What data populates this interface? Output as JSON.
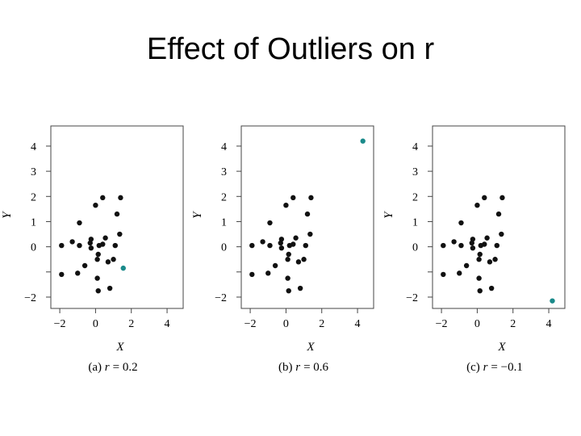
{
  "slide": {
    "title": "Effect of Outliers on r"
  },
  "colors": {
    "points": "#111111",
    "outlier": "#1a8a8a",
    "frame": "#444444"
  },
  "chart_data": [
    {
      "type": "scatter",
      "xlabel": "X",
      "ylabel": "Y",
      "xlim": [
        -2.5,
        4.9
      ],
      "ylim": [
        -2.45,
        4.8
      ],
      "xticks": [
        -2,
        0,
        2,
        4
      ],
      "yticks": [
        -2,
        -1,
        0,
        1,
        2,
        3,
        4
      ],
      "ytick_labels": [
        "−2",
        "",
        "0",
        "1",
        "2",
        "3",
        "4"
      ],
      "caption_prefix": "(a) ",
      "r_label": "r",
      "r_value": "= 0.2",
      "points": [
        {
          "x": -1.9,
          "y": -1.1
        },
        {
          "x": -1.9,
          "y": 0.05
        },
        {
          "x": -1.3,
          "y": 0.2
        },
        {
          "x": -1.0,
          "y": -1.05
        },
        {
          "x": -0.9,
          "y": 0.05
        },
        {
          "x": -0.9,
          "y": 0.95
        },
        {
          "x": -0.6,
          "y": -0.75
        },
        {
          "x": -0.3,
          "y": 0.15
        },
        {
          "x": -0.25,
          "y": 0.3
        },
        {
          "x": -0.25,
          "y": -0.05
        },
        {
          "x": 0.0,
          "y": 1.65
        },
        {
          "x": 0.1,
          "y": -0.5
        },
        {
          "x": 0.15,
          "y": -0.3
        },
        {
          "x": 0.1,
          "y": -1.25
        },
        {
          "x": 0.15,
          "y": -1.75
        },
        {
          "x": 0.2,
          "y": 0.05
        },
        {
          "x": 0.4,
          "y": 1.95
        },
        {
          "x": 0.4,
          "y": 0.1
        },
        {
          "x": 0.55,
          "y": 0.35
        },
        {
          "x": 0.7,
          "y": -0.6
        },
        {
          "x": 0.8,
          "y": -1.65
        },
        {
          "x": 1.0,
          "y": -0.5
        },
        {
          "x": 1.1,
          "y": 0.05
        },
        {
          "x": 1.2,
          "y": 1.3
        },
        {
          "x": 1.35,
          "y": 0.5
        },
        {
          "x": 1.4,
          "y": 1.95
        }
      ],
      "outlier": {
        "x": 1.55,
        "y": -0.85
      }
    },
    {
      "type": "scatter",
      "xlabel": "X",
      "ylabel": "Y",
      "xlim": [
        -2.5,
        4.9
      ],
      "ylim": [
        -2.45,
        4.8
      ],
      "xticks": [
        -2,
        0,
        2,
        4
      ],
      "yticks": [
        -2,
        -1,
        0,
        1,
        2,
        3,
        4
      ],
      "ytick_labels": [
        "−2",
        "",
        "0",
        "1",
        "2",
        "3",
        "4"
      ],
      "caption_prefix": "(b) ",
      "r_label": "r",
      "r_value": "= 0.6",
      "points": [
        {
          "x": -1.9,
          "y": -1.1
        },
        {
          "x": -1.9,
          "y": 0.05
        },
        {
          "x": -1.3,
          "y": 0.2
        },
        {
          "x": -1.0,
          "y": -1.05
        },
        {
          "x": -0.9,
          "y": 0.05
        },
        {
          "x": -0.9,
          "y": 0.95
        },
        {
          "x": -0.6,
          "y": -0.75
        },
        {
          "x": -0.3,
          "y": 0.15
        },
        {
          "x": -0.25,
          "y": 0.3
        },
        {
          "x": -0.25,
          "y": -0.05
        },
        {
          "x": 0.0,
          "y": 1.65
        },
        {
          "x": 0.1,
          "y": -0.5
        },
        {
          "x": 0.15,
          "y": -0.3
        },
        {
          "x": 0.1,
          "y": -1.25
        },
        {
          "x": 0.15,
          "y": -1.75
        },
        {
          "x": 0.2,
          "y": 0.05
        },
        {
          "x": 0.4,
          "y": 1.95
        },
        {
          "x": 0.4,
          "y": 0.1
        },
        {
          "x": 0.55,
          "y": 0.35
        },
        {
          "x": 0.7,
          "y": -0.6
        },
        {
          "x": 0.8,
          "y": -1.65
        },
        {
          "x": 1.0,
          "y": -0.5
        },
        {
          "x": 1.1,
          "y": 0.05
        },
        {
          "x": 1.2,
          "y": 1.3
        },
        {
          "x": 1.35,
          "y": 0.5
        },
        {
          "x": 1.4,
          "y": 1.95
        }
      ],
      "outlier": {
        "x": 4.3,
        "y": 4.2
      }
    },
    {
      "type": "scatter",
      "xlabel": "X",
      "ylabel": "Y",
      "xlim": [
        -2.5,
        4.9
      ],
      "ylim": [
        -2.45,
        4.8
      ],
      "xticks": [
        -2,
        0,
        2,
        4
      ],
      "yticks": [
        -2,
        -1,
        0,
        1,
        2,
        3,
        4
      ],
      "ytick_labels": [
        "−2",
        "",
        "0",
        "1",
        "2",
        "3",
        "4"
      ],
      "caption_prefix": "(c) ",
      "r_label": "r",
      "r_value": "= −0.1",
      "points": [
        {
          "x": -1.9,
          "y": -1.1
        },
        {
          "x": -1.9,
          "y": 0.05
        },
        {
          "x": -1.3,
          "y": 0.2
        },
        {
          "x": -1.0,
          "y": -1.05
        },
        {
          "x": -0.9,
          "y": 0.05
        },
        {
          "x": -0.9,
          "y": 0.95
        },
        {
          "x": -0.6,
          "y": -0.75
        },
        {
          "x": -0.3,
          "y": 0.15
        },
        {
          "x": -0.25,
          "y": 0.3
        },
        {
          "x": -0.25,
          "y": -0.05
        },
        {
          "x": 0.0,
          "y": 1.65
        },
        {
          "x": 0.1,
          "y": -0.5
        },
        {
          "x": 0.15,
          "y": -0.3
        },
        {
          "x": 0.1,
          "y": -1.25
        },
        {
          "x": 0.15,
          "y": -1.75
        },
        {
          "x": 0.2,
          "y": 0.05
        },
        {
          "x": 0.4,
          "y": 1.95
        },
        {
          "x": 0.4,
          "y": 0.1
        },
        {
          "x": 0.55,
          "y": 0.35
        },
        {
          "x": 0.7,
          "y": -0.6
        },
        {
          "x": 0.8,
          "y": -1.65
        },
        {
          "x": 1.0,
          "y": -0.5
        },
        {
          "x": 1.1,
          "y": 0.05
        },
        {
          "x": 1.2,
          "y": 1.3
        },
        {
          "x": 1.35,
          "y": 0.5
        },
        {
          "x": 1.4,
          "y": 1.95
        }
      ],
      "outlier": {
        "x": 4.2,
        "y": -2.15
      }
    }
  ]
}
